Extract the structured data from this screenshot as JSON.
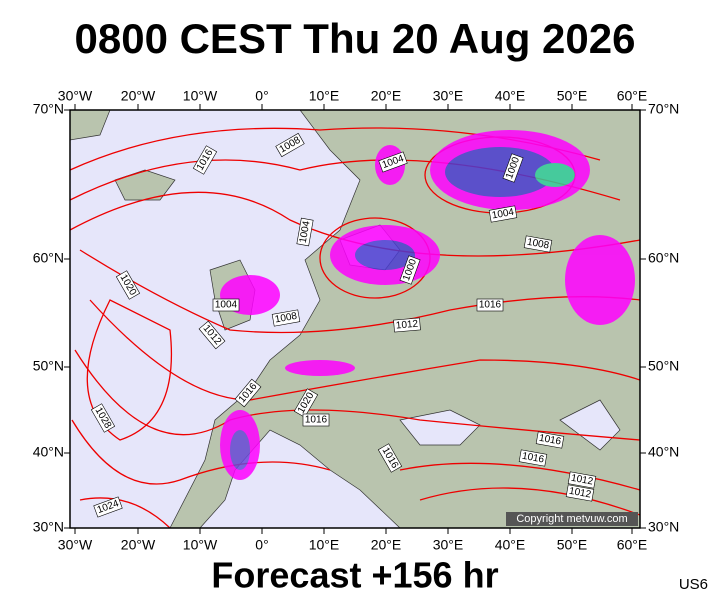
{
  "header": {
    "title": "0800 CEST Thu 20 Aug 2026"
  },
  "axes": {
    "longitudes": [
      "30°W",
      "20°W",
      "10°W",
      "0°",
      "10°E",
      "20°E",
      "30°E",
      "40°E",
      "50°E",
      "60°E"
    ],
    "latitudes": [
      "70°N",
      "60°N",
      "50°N",
      "40°N",
      "30°N"
    ]
  },
  "isobar_labels": [
    "1016",
    "1008",
    "1004",
    "1000",
    "1004",
    "1008",
    "1004",
    "1000",
    "1020",
    "1004",
    "1008",
    "1012",
    "1012",
    "1016",
    "1016",
    "1020",
    "1016",
    "1028",
    "1016",
    "1016",
    "1016",
    "1012",
    "1012",
    "1024"
  ],
  "copyright": "Copyright metvuw.com",
  "footer": {
    "forecast": "Forecast +156 hr",
    "code": "US6"
  }
}
